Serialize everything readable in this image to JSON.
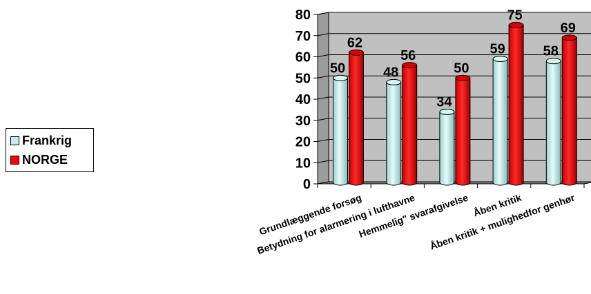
{
  "chart_data": {
    "type": "bar",
    "categories": [
      "Grundlæggende forsøg",
      "Betydning for alarmering i lufthavne",
      "Hemmelig\" svarafgivelse",
      "Åben kritik",
      "Åben kritik + mulighedfor genhør"
    ],
    "series": [
      {
        "name": "Frankrig",
        "values": [
          50,
          48,
          34,
          59,
          58
        ],
        "color": "#c9ecec"
      },
      {
        "name": "NORGE",
        "values": [
          62,
          56,
          50,
          75,
          69
        ],
        "color": "#ff0000"
      }
    ],
    "yticks": [
      "0",
      "10",
      "20",
      "30",
      "40",
      "50",
      "60",
      "70",
      "80"
    ],
    "ylim": [
      0,
      80
    ],
    "grid": true,
    "legend_position": "left",
    "wall_color": "#c0c0c0",
    "floor_color": "#808080"
  }
}
